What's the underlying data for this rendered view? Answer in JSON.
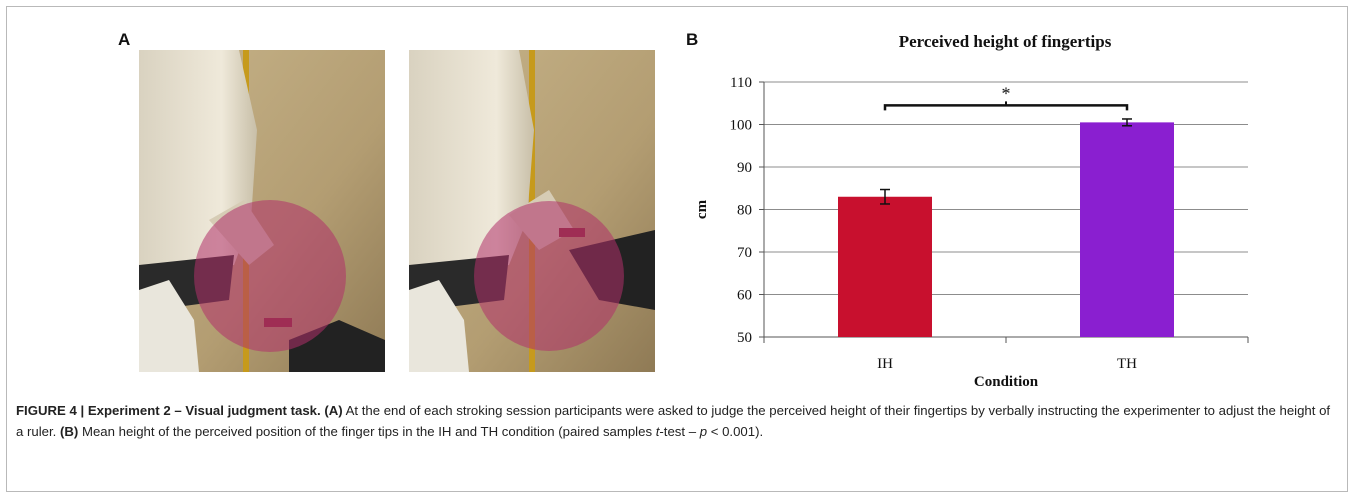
{
  "panel_a_label": "A",
  "panel_b_label": "B",
  "caption": {
    "figure_label": "FIGURE 4 | Experiment 2 – Visual judgment task.",
    "a_tag": "(A)",
    "a_text": " At the end of each stroking session participants were asked to judge the perceived height of their fingertips by verbally instructing the experimenter to adjust the height of a ruler. ",
    "b_tag": "(B)",
    "b_text": " Mean height of the perceived position of the finger tips in the IH and TH condition (paired samples ",
    "t_italic": "t",
    "b_text2": "-test – ",
    "p_italic": "p",
    "b_text3": " < 0.001)."
  },
  "chart_data": {
    "type": "bar",
    "title": "Perceived height of fingertips",
    "xlabel": "Condition",
    "ylabel": "cm",
    "categories": [
      "IH",
      "TH"
    ],
    "values": [
      83,
      100.5
    ],
    "errors": [
      1.7,
      0.8
    ],
    "colors": [
      "#c8102e",
      "#8a1fd0"
    ],
    "ylim": [
      50,
      110
    ],
    "yticks": [
      50,
      60,
      70,
      80,
      90,
      100,
      110
    ],
    "grid": true,
    "significance_marker": "*"
  }
}
